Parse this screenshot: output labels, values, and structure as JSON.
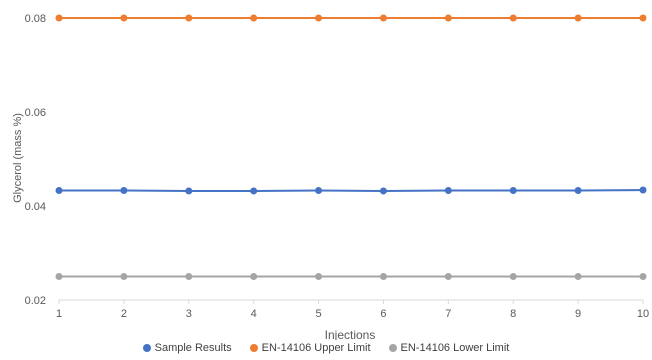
{
  "chart_data": {
    "type": "line",
    "title": "",
    "xlabel": "Injections",
    "ylabel": "Glycerol (mass %)",
    "x": [
      1,
      2,
      3,
      4,
      5,
      6,
      7,
      8,
      9,
      10
    ],
    "xtick_labels": [
      "1",
      "2",
      "3",
      "4",
      "5",
      "6",
      "7",
      "8",
      "9",
      "10"
    ],
    "ylim": [
      0.02,
      0.08
    ],
    "yticks": [
      0.02,
      0.04,
      0.06,
      0.08
    ],
    "ytick_labels": [
      "0.02",
      "0.04",
      "0.06",
      "0.08"
    ],
    "grid": false,
    "legend_position": "bottom",
    "series": [
      {
        "name": "Sample Results",
        "color": "#4472c4",
        "values": [
          0.0433,
          0.0433,
          0.0432,
          0.0432,
          0.0433,
          0.0432,
          0.0433,
          0.0433,
          0.0433,
          0.0434
        ]
      },
      {
        "name": "EN-14106 Upper Limit",
        "color": "#ed7d31",
        "values": [
          0.08,
          0.08,
          0.08,
          0.08,
          0.08,
          0.08,
          0.08,
          0.08,
          0.08,
          0.08
        ]
      },
      {
        "name": "EN-14106 Lower Limit",
        "color": "#a5a5a5",
        "values": [
          0.025,
          0.025,
          0.025,
          0.025,
          0.025,
          0.025,
          0.025,
          0.025,
          0.025,
          0.025
        ]
      }
    ]
  }
}
